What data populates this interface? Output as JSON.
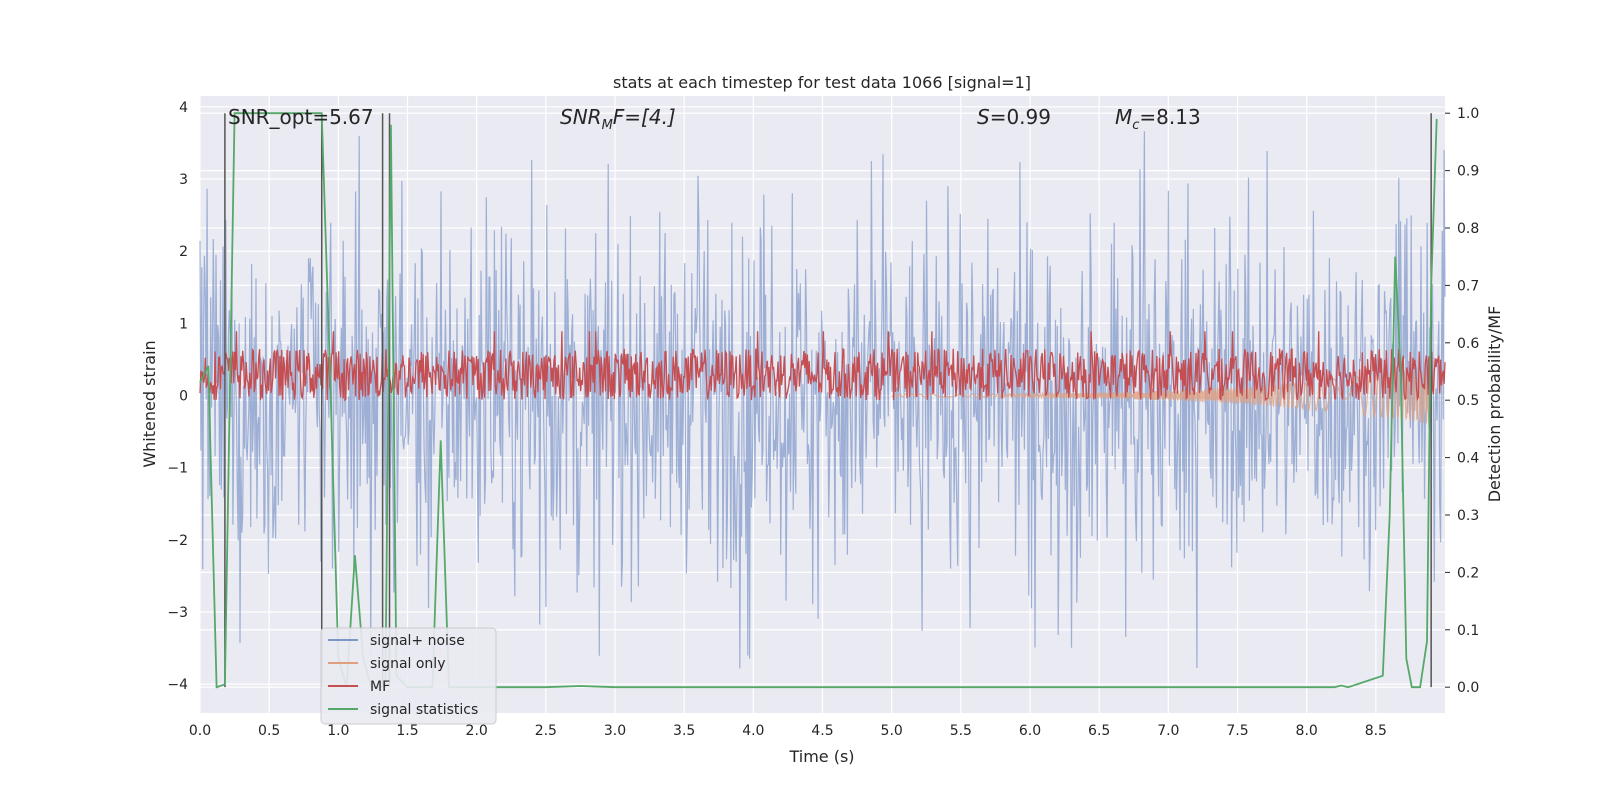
{
  "chart_data": {
    "type": "line",
    "title": "stats at each timestep for test data 1066 [signal=1]",
    "xlabel": "Time (s)",
    "ylabel": "Whitened strain",
    "y2label": "Detection probability/MF",
    "xlim": [
      0.0,
      9.0
    ],
    "ylim": [
      -4.4,
      4.15
    ],
    "y2lim": [
      -0.045,
      1.03
    ],
    "x_ticks": [
      "0.0",
      "0.5",
      "1.0",
      "1.5",
      "2.0",
      "2.5",
      "3.0",
      "3.5",
      "4.0",
      "4.5",
      "5.0",
      "5.5",
      "6.0",
      "6.5",
      "7.0",
      "7.5",
      "8.0",
      "8.5"
    ],
    "y_ticks": [
      "−4",
      "−3",
      "−2",
      "−1",
      "0",
      "1",
      "2",
      "3",
      "4"
    ],
    "y2_ticks": [
      "0.0",
      "0.1",
      "0.2",
      "0.3",
      "0.4",
      "0.5",
      "0.6",
      "0.7",
      "0.8",
      "0.9",
      "1.0"
    ],
    "grid": true,
    "background": "#eaeaf2",
    "annotations": {
      "snr_opt": "SNR_opt=5.67",
      "snr_mf_prefix": "SNR",
      "snr_mf_sub": "M",
      "snr_mf_suffix": "F=[4.]",
      "s_prefix": "S",
      "s_suffix": "=0.99",
      "mc_prefix": "M",
      "mc_sub": "c",
      "mc_suffix": "=8.13"
    },
    "legend": {
      "placement": "lower-left",
      "entries": [
        {
          "label": "signal+ noise",
          "color": "#7c96c8"
        },
        {
          "label": "signal only",
          "color": "#e0a080"
        },
        {
          "label": "MF",
          "color": "#c44e52"
        },
        {
          "label": "signal statistics",
          "color": "#55a868"
        }
      ]
    },
    "series": [
      {
        "name": "signal+ noise",
        "axis": "left",
        "type": "noise-band",
        "color": "#7c96c8",
        "typical_abs": 1.6,
        "max_abs": 3.8
      },
      {
        "name": "signal only",
        "axis": "left",
        "type": "chirp",
        "color": "#e0a080",
        "start": 5.0,
        "end": 8.9,
        "amp_start": 0.02,
        "amp_end": 0.4
      },
      {
        "name": "MF",
        "axis": "right",
        "type": "noise-band",
        "color": "#c44e52",
        "center": 0.545,
        "half_width": 0.045,
        "spike": 0.62
      },
      {
        "name": "signal statistics",
        "axis": "right",
        "color": "#55a868",
        "x": [
          0.0,
          0.06,
          0.12,
          0.18,
          0.25,
          0.3,
          0.4,
          0.5,
          0.6,
          0.7,
          0.8,
          0.88,
          0.94,
          1.0,
          1.06,
          1.12,
          1.18,
          1.24,
          1.3,
          1.34,
          1.38,
          1.42,
          1.5,
          1.6,
          1.68,
          1.74,
          1.8,
          1.9,
          2.0,
          2.5,
          2.75,
          3.0,
          4.0,
          5.0,
          6.0,
          7.0,
          8.0,
          8.2,
          8.25,
          8.3,
          8.55,
          8.6,
          8.64,
          8.68,
          8.72,
          8.76,
          8.82,
          8.87,
          8.9,
          8.94
        ],
        "y": [
          0.53,
          0.56,
          0.0,
          0.005,
          1.0,
          1.0,
          1.0,
          1.0,
          1.0,
          1.0,
          1.0,
          1.0,
          0.55,
          0.05,
          0.0,
          0.23,
          0.05,
          0.0,
          0.0,
          0.0,
          0.98,
          0.02,
          0.0,
          0.0,
          0.0,
          0.43,
          0.0,
          0.0,
          0.0,
          0.0,
          0.002,
          0.0,
          0.0,
          0.0,
          0.0,
          0.0,
          0.0,
          0.0,
          0.003,
          0.0,
          0.02,
          0.3,
          0.75,
          0.55,
          0.05,
          0.0,
          0.0,
          0.08,
          0.7,
          0.99
        ]
      }
    ],
    "vertical_markers": {
      "color": "#555555",
      "x": [
        0.18,
        0.88,
        1.32,
        1.37,
        8.9
      ]
    }
  }
}
